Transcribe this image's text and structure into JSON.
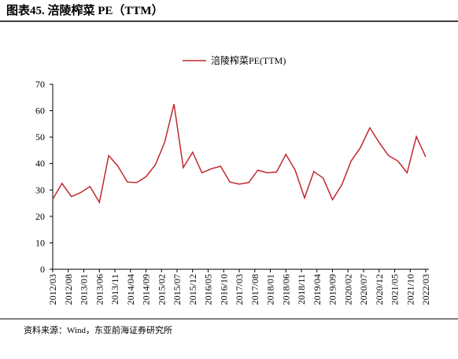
{
  "header": {
    "title": "图表45. 涪陵榨菜 PE（TTM）"
  },
  "chart_data": {
    "type": "line",
    "x": [
      "2012/03",
      "2012/06",
      "2012/09",
      "2012/12",
      "2013/03",
      "2013/06",
      "2013/09",
      "2013/12",
      "2014/03",
      "2014/06",
      "2014/09",
      "2014/12",
      "2015/03",
      "2015/06",
      "2015/09",
      "2015/12",
      "2016/03",
      "2016/06",
      "2016/09",
      "2016/12",
      "2017/03",
      "2017/06",
      "2017/09",
      "2017/12",
      "2018/03",
      "2018/06",
      "2018/09",
      "2018/12",
      "2019/03",
      "2019/06",
      "2019/09",
      "2019/12",
      "2020/03",
      "2020/06",
      "2020/09",
      "2020/12",
      "2021/03",
      "2021/06",
      "2021/09",
      "2021/12",
      "2022/03"
    ],
    "series": [
      {
        "name": "涪陵榨菜PE(TTM)",
        "color": "#c0282d",
        "values": [
          26.5,
          32.5,
          27.5,
          29,
          31.3,
          25.3,
          43,
          39,
          33,
          32.8,
          35,
          39.5,
          48,
          62.5,
          38.5,
          44.3,
          36.5,
          38,
          39,
          33,
          32.2,
          32.8,
          37.5,
          36.5,
          36.8,
          43.5,
          37.5,
          27,
          37,
          34.5,
          26.3,
          32,
          41,
          46,
          53.5,
          48,
          43,
          41,
          36.5,
          50.2,
          42.5
        ]
      }
    ],
    "ylim": [
      0,
      70
    ],
    "yticks": [
      0,
      10,
      20,
      30,
      40,
      50,
      60,
      70
    ],
    "xticks": [
      "2012/03",
      "2012/08",
      "2013/01",
      "2013/06",
      "2013/11",
      "2014/04",
      "2014/09",
      "2015/02",
      "2015/07",
      "2015/12",
      "2016/05",
      "2016/10",
      "2017/03",
      "2017/08",
      "2018/01",
      "2018/06",
      "2018/11",
      "2019/04",
      "2019/09",
      "2020/02",
      "2020/07",
      "2020/12",
      "2021/05",
      "2021/10",
      "2022/03"
    ],
    "legend": "top"
  },
  "footer": {
    "source": "资料来源：Wind，东亚前海证券研究所"
  }
}
